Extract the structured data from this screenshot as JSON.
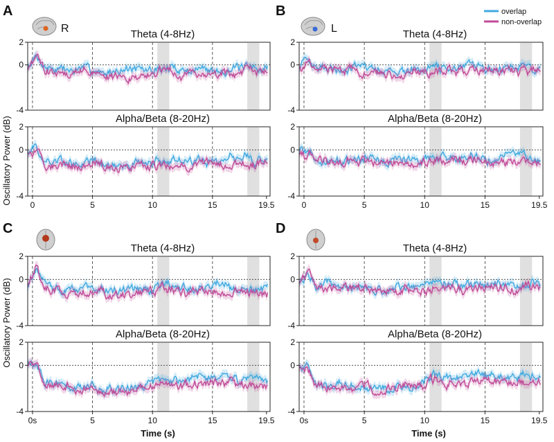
{
  "figure": {
    "legend": [
      {
        "label": "overlap",
        "color": "#3fa9e0"
      },
      {
        "label": "non-overlap",
        "color": "#c04a97"
      }
    ],
    "ylabel": "Oscillatory Power (dB)",
    "xlabel": "Time (s)"
  },
  "panels": [
    {
      "letter": "A",
      "hemisphere": "R",
      "view": "sagittal brain"
    },
    {
      "letter": "B",
      "hemisphere": "L",
      "view": "sagittal brain"
    },
    {
      "letter": "C",
      "hemisphere": "",
      "view": "coronal brain"
    },
    {
      "letter": "D",
      "hemisphere": "",
      "view": "coronal brain"
    }
  ],
  "chart_data": [
    {
      "panel": "A",
      "type": "line",
      "title": "Theta (4-8Hz)",
      "xlim": [
        -0.4,
        19.8
      ],
      "ylim": [
        -4,
        2
      ],
      "yticks": [
        "2",
        "0",
        "-4"
      ],
      "xticks": [],
      "shaded": [
        [
          10.4,
          11.4
        ],
        [
          17.9,
          18.9
        ]
      ],
      "series": [
        {
          "name": "overlap",
          "x": [
            -0.4,
            0.3,
            1.0,
            2.0,
            3.0,
            4.0,
            5.0,
            6.0,
            7.0,
            8.0,
            9.0,
            10.0,
            11.0,
            12.0,
            13.0,
            14.0,
            15.0,
            16.0,
            17.0,
            18.0,
            19.0,
            19.5
          ],
          "values": [
            -0.3,
            0.6,
            -0.2,
            -0.4,
            -0.5,
            -0.4,
            -0.4,
            -0.6,
            -0.5,
            -0.4,
            -0.5,
            -0.5,
            -0.2,
            -0.3,
            -0.5,
            -0.3,
            -0.4,
            -0.4,
            -0.3,
            -0.3,
            -0.2,
            -0.3
          ]
        },
        {
          "name": "non-overlap",
          "x": [
            -0.4,
            0.3,
            1.0,
            2.0,
            3.0,
            4.0,
            5.0,
            6.0,
            7.0,
            8.0,
            9.0,
            10.0,
            11.0,
            12.0,
            13.0,
            14.0,
            15.0,
            16.0,
            17.0,
            18.0,
            19.0,
            19.5
          ],
          "values": [
            -0.4,
            0.7,
            -0.5,
            -0.7,
            -0.8,
            -0.6,
            -0.6,
            -1.0,
            -1.1,
            -1.2,
            -1.0,
            -0.9,
            -0.6,
            -0.9,
            -1.0,
            -0.8,
            -0.9,
            -0.7,
            -0.9,
            -0.8,
            -0.7,
            -0.8
          ]
        }
      ]
    },
    {
      "panel": "A",
      "type": "line",
      "title": "Alpha/Beta (8-20Hz)",
      "xlim": [
        -0.4,
        19.8
      ],
      "ylim": [
        -4,
        2
      ],
      "yticks": [
        "2",
        "0",
        "-4"
      ],
      "xticks": [
        "0",
        "5",
        "10",
        "15",
        "19.5"
      ],
      "shaded": [
        [
          10.4,
          11.4
        ],
        [
          17.9,
          18.9
        ]
      ],
      "series": [
        {
          "name": "overlap",
          "x": [
            -0.4,
            0.3,
            1.0,
            2.0,
            3.0,
            4.0,
            5.0,
            6.0,
            7.0,
            8.0,
            9.0,
            10.0,
            11.0,
            12.0,
            13.0,
            14.0,
            15.0,
            16.0,
            17.0,
            18.0,
            19.0,
            19.5
          ],
          "values": [
            -0.1,
            0.0,
            -1.1,
            -1.0,
            -1.2,
            -1.3,
            -1.2,
            -1.3,
            -1.4,
            -1.3,
            -1.3,
            -1.2,
            -0.8,
            -0.9,
            -1.0,
            -0.9,
            -0.9,
            -0.8,
            -0.7,
            -0.6,
            -0.8,
            -0.9
          ]
        },
        {
          "name": "non-overlap",
          "x": [
            -0.4,
            0.3,
            1.0,
            2.0,
            3.0,
            4.0,
            5.0,
            6.0,
            7.0,
            8.0,
            9.0,
            10.0,
            11.0,
            12.0,
            13.0,
            14.0,
            15.0,
            16.0,
            17.0,
            18.0,
            19.0,
            19.5
          ],
          "values": [
            -0.2,
            0.0,
            -1.3,
            -1.2,
            -1.4,
            -1.5,
            -1.3,
            -1.5,
            -1.6,
            -1.5,
            -1.4,
            -1.3,
            -1.2,
            -1.3,
            -1.4,
            -1.3,
            -1.2,
            -1.3,
            -1.1,
            -1.3,
            -1.2,
            -1.3
          ]
        }
      ]
    },
    {
      "panel": "B",
      "type": "line",
      "title": "Theta (4-8Hz)",
      "xlim": [
        -0.4,
        19.8
      ],
      "ylim": [
        -4,
        2
      ],
      "yticks": [
        "2",
        "0",
        "-4"
      ],
      "xticks": [],
      "shaded": [
        [
          10.4,
          11.4
        ],
        [
          17.9,
          18.9
        ]
      ],
      "series": [
        {
          "name": "overlap",
          "x": [
            -0.4,
            0.3,
            1.0,
            2.0,
            3.0,
            4.0,
            5.0,
            6.0,
            7.0,
            8.0,
            9.0,
            10.0,
            11.0,
            12.0,
            13.0,
            14.0,
            15.0,
            16.0,
            17.0,
            18.0,
            19.0,
            19.5
          ],
          "values": [
            -0.1,
            0.5,
            -0.2,
            -0.3,
            -0.4,
            -0.3,
            -0.3,
            -0.4,
            -0.5,
            -0.4,
            -0.4,
            -0.4,
            -0.1,
            -0.3,
            -0.4,
            -0.2,
            -0.3,
            -0.3,
            -0.2,
            -0.2,
            -0.3,
            -0.2
          ]
        },
        {
          "name": "non-overlap",
          "x": [
            -0.4,
            0.3,
            1.0,
            2.0,
            3.0,
            4.0,
            5.0,
            6.0,
            7.0,
            8.0,
            9.0,
            10.0,
            11.0,
            12.0,
            13.0,
            14.0,
            15.0,
            16.0,
            17.0,
            18.0,
            19.0,
            19.5
          ],
          "values": [
            -0.2,
            0.2,
            -0.3,
            -0.4,
            -0.5,
            -0.4,
            -0.5,
            -0.6,
            -0.6,
            -0.7,
            -0.6,
            -0.7,
            -0.5,
            -0.6,
            -0.6,
            -0.5,
            -0.6,
            -0.5,
            -0.6,
            -0.5,
            -0.4,
            -0.5
          ]
        }
      ]
    },
    {
      "panel": "B",
      "type": "line",
      "title": "Alpha/Beta (8-20Hz)",
      "xlim": [
        -0.4,
        19.8
      ],
      "ylim": [
        -4,
        2
      ],
      "yticks": [
        "2",
        "0",
        "-4"
      ],
      "xticks": [
        "0",
        "5",
        "10",
        "15",
        "19.5"
      ],
      "shaded": [
        [
          10.4,
          11.4
        ],
        [
          17.9,
          18.9
        ]
      ],
      "series": [
        {
          "name": "overlap",
          "x": [
            -0.4,
            0.3,
            1.0,
            2.0,
            3.0,
            4.0,
            5.0,
            6.0,
            7.0,
            8.0,
            9.0,
            10.0,
            11.0,
            12.0,
            13.0,
            14.0,
            15.0,
            16.0,
            17.0,
            18.0,
            19.0,
            19.5
          ],
          "values": [
            -0.1,
            -0.1,
            -0.9,
            -0.8,
            -0.9,
            -1.0,
            -0.9,
            -1.0,
            -1.0,
            -0.9,
            -0.9,
            -0.8,
            -0.5,
            -0.7,
            -0.8,
            -0.6,
            -0.7,
            -0.6,
            -0.5,
            -0.5,
            -0.7,
            -0.7
          ]
        },
        {
          "name": "non-overlap",
          "x": [
            -0.4,
            0.3,
            1.0,
            2.0,
            3.0,
            4.0,
            5.0,
            6.0,
            7.0,
            8.0,
            9.0,
            10.0,
            11.0,
            12.0,
            13.0,
            14.0,
            15.0,
            16.0,
            17.0,
            18.0,
            19.0,
            19.5
          ],
          "values": [
            -0.1,
            -0.2,
            -1.0,
            -1.0,
            -1.1,
            -1.1,
            -1.0,
            -1.1,
            -1.2,
            -1.1,
            -1.0,
            -1.0,
            -0.9,
            -1.0,
            -1.1,
            -1.0,
            -1.0,
            -1.0,
            -0.9,
            -1.0,
            -0.9,
            -1.0
          ]
        }
      ]
    },
    {
      "panel": "C",
      "type": "line",
      "title": "Theta (4-8Hz)",
      "xlim": [
        -0.4,
        19.8
      ],
      "ylim": [
        -4,
        2
      ],
      "yticks": [
        "2",
        "0",
        "-4"
      ],
      "xticks": [],
      "shaded": [
        [
          10.4,
          11.4
        ],
        [
          17.9,
          18.9
        ]
      ],
      "series": [
        {
          "name": "overlap",
          "x": [
            -0.4,
            0.3,
            1.0,
            2.0,
            3.0,
            4.0,
            5.0,
            6.0,
            7.0,
            8.0,
            9.0,
            10.0,
            11.0,
            12.0,
            13.0,
            14.0,
            15.0,
            16.0,
            17.0,
            18.0,
            19.0,
            19.5
          ],
          "values": [
            -0.5,
            1.1,
            -0.7,
            -0.9,
            -1.0,
            -0.9,
            -0.6,
            -1.1,
            -1.0,
            -0.9,
            -1.0,
            -0.9,
            -0.3,
            -0.6,
            -0.8,
            -0.7,
            -0.7,
            -0.5,
            -0.6,
            -0.7,
            -0.6,
            -0.7
          ]
        },
        {
          "name": "non-overlap",
          "x": [
            -0.4,
            0.3,
            1.0,
            2.0,
            3.0,
            4.0,
            5.0,
            6.0,
            7.0,
            8.0,
            9.0,
            10.0,
            11.0,
            12.0,
            13.0,
            14.0,
            15.0,
            16.0,
            17.0,
            18.0,
            19.0,
            19.5
          ],
          "values": [
            -0.6,
            1.2,
            -0.8,
            -1.1,
            -1.2,
            -1.1,
            -0.8,
            -1.3,
            -1.4,
            -1.3,
            -1.2,
            -1.1,
            -0.6,
            -1.0,
            -1.2,
            -1.1,
            -1.1,
            -0.9,
            -1.0,
            -1.1,
            -1.0,
            -1.1
          ]
        }
      ]
    },
    {
      "panel": "C",
      "type": "line",
      "title": "Alpha/Beta (8-20Hz)",
      "xlim": [
        -0.4,
        19.8
      ],
      "ylim": [
        -4,
        2
      ],
      "yticks": [
        "2",
        "0",
        "-4"
      ],
      "xticks": [
        "0s",
        "5",
        "10",
        "15",
        "19.5"
      ],
      "shaded": [
        [
          10.4,
          11.4
        ],
        [
          17.9,
          18.9
        ]
      ],
      "series": [
        {
          "name": "overlap",
          "x": [
            -0.4,
            0.3,
            1.0,
            2.0,
            3.0,
            4.0,
            5.0,
            6.0,
            7.0,
            8.0,
            9.0,
            10.0,
            11.0,
            12.0,
            13.0,
            14.0,
            15.0,
            16.0,
            17.0,
            18.0,
            19.0,
            19.5
          ],
          "values": [
            0.0,
            0.1,
            -1.6,
            -1.7,
            -1.9,
            -2.0,
            -1.8,
            -2.2,
            -2.1,
            -1.9,
            -1.9,
            -1.6,
            -0.9,
            -1.2,
            -1.3,
            -1.1,
            -1.0,
            -0.9,
            -1.0,
            -1.2,
            -1.2,
            -1.3
          ]
        },
        {
          "name": "non-overlap",
          "x": [
            -0.4,
            0.3,
            1.0,
            2.0,
            3.0,
            4.0,
            5.0,
            6.0,
            7.0,
            8.0,
            9.0,
            10.0,
            11.0,
            12.0,
            13.0,
            14.0,
            15.0,
            16.0,
            17.0,
            18.0,
            19.0,
            19.5
          ],
          "values": [
            -0.1,
            0.0,
            -1.8,
            -1.9,
            -2.1,
            -2.2,
            -2.0,
            -2.4,
            -2.3,
            -2.1,
            -2.0,
            -1.8,
            -1.4,
            -1.6,
            -1.7,
            -1.6,
            -1.5,
            -1.5,
            -1.6,
            -1.7,
            -1.7,
            -1.8
          ]
        }
      ]
    },
    {
      "panel": "D",
      "type": "line",
      "title": "Theta (4-8Hz)",
      "xlim": [
        -0.4,
        19.8
      ],
      "ylim": [
        -4,
        2
      ],
      "yticks": [
        "2",
        "0",
        "-4"
      ],
      "xticks": [],
      "shaded": [
        [
          10.4,
          11.4
        ],
        [
          17.9,
          18.9
        ]
      ],
      "series": [
        {
          "name": "overlap",
          "x": [
            -0.4,
            0.3,
            1.0,
            2.0,
            3.0,
            4.0,
            5.0,
            6.0,
            7.0,
            8.0,
            9.0,
            10.0,
            11.0,
            12.0,
            13.0,
            14.0,
            15.0,
            16.0,
            17.0,
            18.0,
            19.0,
            19.5
          ],
          "values": [
            -0.2,
            0.7,
            -0.5,
            -0.6,
            -0.7,
            -0.6,
            -0.5,
            -0.8,
            -0.8,
            -0.7,
            -0.7,
            -0.7,
            -0.2,
            -0.5,
            -0.6,
            -0.5,
            -0.6,
            -0.4,
            -0.5,
            -0.5,
            -0.4,
            -0.5
          ]
        },
        {
          "name": "non-overlap",
          "x": [
            -0.4,
            0.3,
            1.0,
            2.0,
            3.0,
            4.0,
            5.0,
            6.0,
            7.0,
            8.0,
            9.0,
            10.0,
            11.0,
            12.0,
            13.0,
            14.0,
            15.0,
            16.0,
            17.0,
            18.0,
            19.0,
            19.5
          ],
          "values": [
            -0.3,
            0.8,
            -0.6,
            -0.8,
            -0.9,
            -0.8,
            -0.7,
            -1.0,
            -1.1,
            -1.0,
            -0.9,
            -1.1,
            -0.5,
            -0.8,
            -0.9,
            -0.8,
            -0.8,
            -0.7,
            -0.8,
            -0.8,
            -0.7,
            -0.8
          ]
        }
      ]
    },
    {
      "panel": "D",
      "type": "line",
      "title": "Alpha/Beta (8-20Hz)",
      "xlim": [
        -0.4,
        19.8
      ],
      "ylim": [
        -4,
        2
      ],
      "yticks": [
        "2",
        "0",
        "-4"
      ],
      "xticks": [
        "0s",
        "5",
        "10",
        "15",
        "19.5"
      ],
      "shaded": [
        [
          10.4,
          11.4
        ],
        [
          17.9,
          18.9
        ]
      ],
      "series": [
        {
          "name": "overlap",
          "x": [
            -0.4,
            0.3,
            1.0,
            2.0,
            3.0,
            4.0,
            5.0,
            6.0,
            7.0,
            8.0,
            9.0,
            10.0,
            11.0,
            12.0,
            13.0,
            14.0,
            15.0,
            16.0,
            17.0,
            18.0,
            19.0,
            19.5
          ],
          "values": [
            -0.1,
            0.0,
            -1.5,
            -1.6,
            -1.7,
            -1.8,
            -1.7,
            -2.0,
            -1.9,
            -1.7,
            -1.7,
            -1.5,
            -0.8,
            -1.0,
            -1.1,
            -0.9,
            -0.9,
            -0.7,
            -0.8,
            -1.0,
            -1.0,
            -1.1
          ]
        },
        {
          "name": "non-overlap",
          "x": [
            -0.4,
            0.3,
            1.0,
            2.0,
            3.0,
            4.0,
            5.0,
            6.0,
            7.0,
            8.0,
            9.0,
            10.0,
            11.0,
            12.0,
            13.0,
            14.0,
            15.0,
            16.0,
            17.0,
            18.0,
            19.0,
            19.5
          ],
          "values": [
            -0.2,
            -0.1,
            -1.7,
            -1.8,
            -1.9,
            -2.0,
            -1.8,
            -2.2,
            -2.1,
            -1.9,
            -1.8,
            -1.7,
            -1.3,
            -1.4,
            -1.5,
            -1.4,
            -1.3,
            -1.3,
            -1.4,
            -1.5,
            -1.5,
            -1.6
          ]
        }
      ]
    }
  ]
}
